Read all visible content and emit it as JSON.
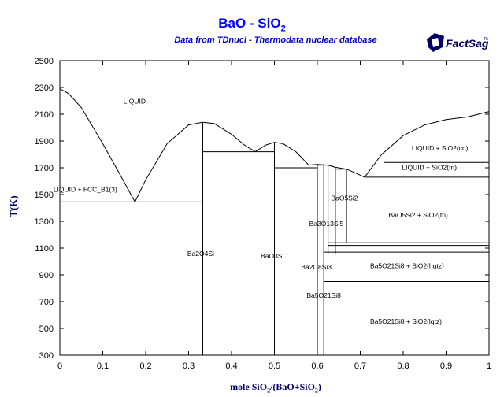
{
  "chart_data": {
    "type": "line",
    "title_main": "BaO - SiO",
    "title_sub": "2",
    "subtitle": "Data from TDnucl - Thermodata nuclear database",
    "logo": {
      "text": "FactSage",
      "tm": "TM",
      "icon": "factsage-logo-icon"
    },
    "xlabel": {
      "pre": "mole SiO",
      "sub": "2",
      "post": "/(BaO+SiO",
      "sub2": "2",
      "end": ")"
    },
    "ylabel": "T(K)",
    "xlim": [
      0,
      1
    ],
    "ylim": [
      300,
      2500
    ],
    "xticks": [
      "0",
      "0.1",
      "0.2",
      "0.3",
      "0.4",
      "0.5",
      "0.6",
      "0.7",
      "0.8",
      "0.9",
      "1"
    ],
    "yticks": [
      "300",
      "500",
      "700",
      "900",
      "1100",
      "1300",
      "1500",
      "1700",
      "1900",
      "2100",
      "2300",
      "2500"
    ],
    "grid": false,
    "series": [
      {
        "x": [
          0,
          0.02,
          0.05,
          0.1,
          0.14,
          0.175
        ],
        "y": [
          2290,
          2255,
          2150,
          1880,
          1650,
          1445
        ]
      },
      {
        "x": [
          0.175,
          0.2,
          0.25,
          0.3,
          0.333
        ],
        "y": [
          1445,
          1610,
          1880,
          2020,
          2040
        ]
      },
      {
        "x": [
          0.333,
          0.36,
          0.4,
          0.43,
          0.455
        ],
        "y": [
          2040,
          2030,
          1950,
          1870,
          1820
        ]
      },
      {
        "x": [
          0.455,
          0.48,
          0.5
        ],
        "y": [
          1820,
          1870,
          1890
        ]
      },
      {
        "x": [
          0.5,
          0.52,
          0.55,
          0.58
        ],
        "y": [
          1890,
          1880,
          1820,
          1720
        ]
      },
      {
        "x": [
          0.58,
          0.6,
          0.625
        ],
        "y": [
          1720,
          1725,
          1720
        ]
      },
      {
        "x": [
          0.625,
          0.64,
          0.668
        ],
        "y": [
          1720,
          1705,
          1690
        ]
      },
      {
        "x": [
          0.668,
          0.69,
          0.71
        ],
        "y": [
          1690,
          1660,
          1630
        ]
      },
      {
        "x": [
          0.71,
          0.75,
          0.8,
          0.85,
          0.9,
          0.95,
          1.0
        ],
        "y": [
          1630,
          1800,
          1940,
          2020,
          2060,
          2080,
          2120
        ]
      }
    ],
    "vertical_lines": [
      {
        "x": 0.333,
        "y": [
          300,
          2040
        ]
      },
      {
        "x": 0.5,
        "y": [
          300,
          1890
        ]
      },
      {
        "x": 0.6,
        "y": [
          300,
          1725
        ]
      },
      {
        "x": 0.615,
        "y": [
          300,
          1720
        ]
      },
      {
        "x": 0.625,
        "y": [
          1060,
          1720
        ]
      },
      {
        "x": 0.642,
        "y": [
          1060,
          1700
        ]
      },
      {
        "x": 0.668,
        "y": [
          1140,
          1690
        ]
      }
    ],
    "horizontal_lines": [
      {
        "y": 1445,
        "x": [
          0,
          0.333
        ]
      },
      {
        "y": 1820,
        "x": [
          0.333,
          0.5
        ]
      },
      {
        "y": 1700,
        "x": [
          0.5,
          0.6
        ]
      },
      {
        "y": 1720,
        "x": [
          0.6,
          0.642
        ]
      },
      {
        "y": 1690,
        "x": [
          0.642,
          0.668
        ]
      },
      {
        "y": 1740,
        "x": [
          0.756,
          1
        ]
      },
      {
        "y": 1630,
        "x": [
          0.71,
          1
        ]
      },
      {
        "y": 1140,
        "x": [
          0.625,
          1
        ]
      },
      {
        "y": 1120,
        "x": [
          0.625,
          1
        ]
      },
      {
        "y": 1070,
        "x": [
          0.615,
          1
        ]
      },
      {
        "y": 850,
        "x": [
          0.615,
          1
        ]
      }
    ],
    "labels": [
      {
        "text": "LIQUID",
        "x": 0.148,
        "y": 2180
      },
      {
        "text": "LIQUID + FCC_B1(3)",
        "x": -0.015,
        "y": 1520
      },
      {
        "text": "Ba2O4Si",
        "x": 0.297,
        "y": 1040
      },
      {
        "text": "BaO3Si",
        "x": 0.468,
        "y": 1025
      },
      {
        "text": "Ba2O8Si3",
        "x": 0.562,
        "y": 940
      },
      {
        "text": "Ba3O13Si5",
        "x": 0.581,
        "y": 1265
      },
      {
        "text": "Ba5O21Si8",
        "x": 0.575,
        "y": 730
      },
      {
        "text": "BaO5Si2",
        "x": 0.632,
        "y": 1455
      },
      {
        "text": "LIQUID + SiO2(cri)",
        "x": 0.82,
        "y": 1830
      },
      {
        "text": "LIQUID + SiO2(tri)",
        "x": 0.797,
        "y": 1685
      },
      {
        "text": "BaO5Si2 + SiO2(tri)",
        "x": 0.766,
        "y": 1330
      },
      {
        "text": "Ba5O21Si8 + SiO2(hqtz)",
        "x": 0.723,
        "y": 950
      },
      {
        "text": "Ba5O21Si8 + SiO2(lqtz)",
        "x": 0.723,
        "y": 535
      }
    ]
  }
}
